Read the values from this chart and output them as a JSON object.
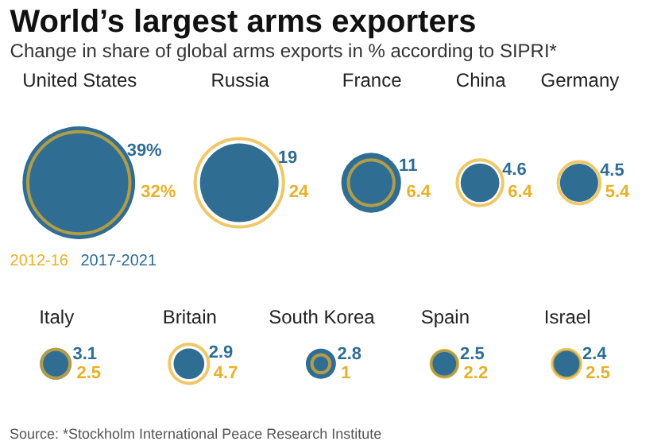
{
  "chart_data": {
    "type": "other",
    "title": "World’s largest arms exporters",
    "subtitle": "Change in share of global arms exports in % according to SIPRI*",
    "categories": [
      "United States",
      "Russia",
      "France",
      "China",
      "Germany",
      "Italy",
      "Britain",
      "South Korea",
      "Spain",
      "Israel"
    ],
    "series": [
      {
        "name": "2012-16",
        "color": "#e8b12a",
        "values": [
          32,
          24,
          6.4,
          6.4,
          5.4,
          2.5,
          4.7,
          1,
          2.2,
          2.5
        ],
        "value_labels": [
          "32%",
          "24",
          "6.4",
          "6.4",
          "5.4",
          "2.5",
          "4.7",
          "1",
          "2.2",
          "2.5"
        ]
      },
      {
        "name": "2017-2021",
        "color": "#2f6d93",
        "values": [
          39,
          19,
          11,
          4.6,
          4.5,
          3.1,
          2.9,
          2.8,
          2.5,
          2.4
        ],
        "value_labels": [
          "39%",
          "19",
          "11",
          "4.6",
          "4.5",
          "3.1",
          "2.9",
          "2.8",
          "2.5",
          "2.4"
        ]
      }
    ],
    "annotations": [
      "Source: *Stockholm International Peace Research Institute"
    ]
  }
}
